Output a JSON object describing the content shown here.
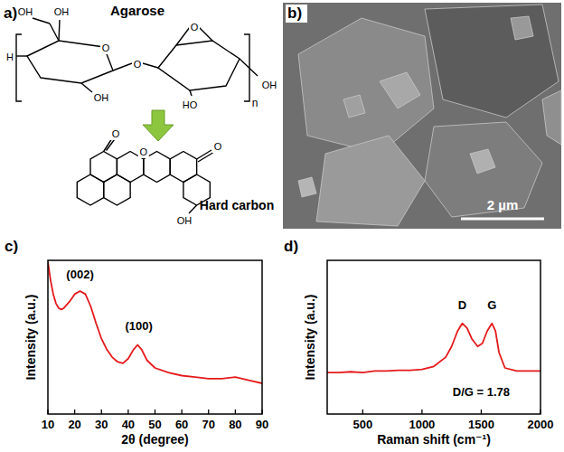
{
  "diagram": {
    "panel": "a)",
    "top_label": "Agarose",
    "bottom_label": "Hard carbon",
    "agarose_atoms": [
      "OH",
      "OH",
      "H",
      "OH",
      "O",
      "O",
      "O",
      "OH",
      "HO",
      "n"
    ],
    "hard_carbon_atoms": [
      "O",
      "O",
      "O",
      "OH"
    ]
  },
  "image": {
    "panel": "b)",
    "scale_bar": "2 µm"
  },
  "chart_data": [
    {
      "type": "line",
      "panel": "c)",
      "x_label": "2θ (degree)",
      "y_label": "Intensity (a.u.)",
      "x": [
        10,
        11,
        12,
        13,
        14,
        15,
        16,
        18,
        20,
        22,
        24,
        26,
        28,
        30,
        32,
        34,
        36,
        38,
        40,
        42,
        43.5,
        45,
        47,
        50,
        55,
        60,
        65,
        70,
        75,
        80,
        85,
        90
      ],
      "series": [
        {
          "color": "#e41a1c",
          "values": [
            99,
            87,
            78,
            72,
            69,
            68,
            69,
            73,
            78,
            80,
            78,
            70,
            59,
            49,
            42,
            37,
            34,
            33,
            36,
            42,
            45,
            42,
            35,
            30,
            27,
            25,
            24,
            23,
            23,
            24,
            22,
            20
          ]
        }
      ],
      "xlim": [
        10,
        90
      ],
      "xticks": [
        10,
        20,
        30,
        40,
        50,
        60,
        70,
        80,
        90
      ],
      "ylim": [
        0,
        100
      ],
      "tick_labels": "x",
      "annotations": [
        {
          "text": "(002)",
          "x": 22,
          "y": 88
        },
        {
          "text": "(100)",
          "x": 44,
          "y": 55
        }
      ]
    },
    {
      "type": "line",
      "panel": "d)",
      "x_label": "Raman shift (cm⁻¹)",
      "y_label": "Intensity (a.u.)",
      "x": [
        200,
        300,
        400,
        500,
        600,
        700,
        800,
        900,
        1000,
        1100,
        1200,
        1250,
        1300,
        1340,
        1380,
        1420,
        1470,
        1510,
        1550,
        1590,
        1620,
        1650,
        1700,
        1800,
        1900,
        2000
      ],
      "series": [
        {
          "color": "#e41a1c",
          "values": [
            27,
            27,
            27.5,
            27,
            28,
            28,
            28.5,
            28.5,
            29,
            31,
            37,
            44,
            54,
            59,
            56,
            49,
            44,
            46,
            54,
            59,
            54,
            40,
            30,
            28,
            28,
            28
          ]
        }
      ],
      "xlim": [
        200,
        2000
      ],
      "xticks": [
        500,
        1000,
        1500,
        2000
      ],
      "ylim": [
        0,
        100
      ],
      "tick_labels": "x",
      "annotations": [
        {
          "text": "D",
          "x": 1340,
          "y": 68
        },
        {
          "text": "G",
          "x": 1590,
          "y": 68
        },
        {
          "text": "D/G = 1.78",
          "x": 1500,
          "y": 12
        }
      ]
    }
  ]
}
